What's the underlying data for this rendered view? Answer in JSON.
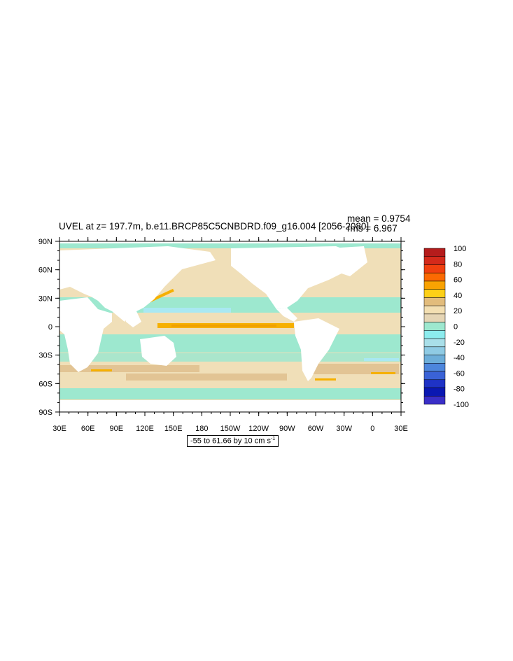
{
  "title": "UVEL at z= 197.7m, b.e11.BRCP85C5CNBDRD.f09_g16.004 [2056-2080]",
  "stats": {
    "mean": "mean = 0.9754",
    "rms": "rms = 6.967"
  },
  "map": {
    "projection": "cylindrical equidistant",
    "lon_range": [
      30,
      390
    ],
    "lat_range": [
      -90,
      90
    ],
    "lat_ticks": [
      "90N",
      "60N",
      "30N",
      "0",
      "30S",
      "60S",
      "90S"
    ],
    "lon_ticks": [
      "30E",
      "60E",
      "90E",
      "120E",
      "150E",
      "180",
      "150W",
      "120W",
      "90W",
      "60W",
      "30W",
      "0",
      "30E"
    ],
    "field_colors": {
      "land": "#ffffff",
      "zero_to_20": "#f0dfb8",
      "minus20_to_0": "#9de8cf",
      "minus40_to_minus20": "#a9e8f2",
      "twenty_to_40": "#e2c494",
      "forty_to_60": "#f6b000"
    }
  },
  "colorbar": {
    "labels": [
      "100",
      "80",
      "60",
      "40",
      "20",
      "0",
      "-20",
      "-40",
      "-60",
      "-80",
      "-100"
    ],
    "colors": [
      "#b51c1c",
      "#d42a1b",
      "#f0400f",
      "#fb6a02",
      "#f9a202",
      "#fdd017",
      "#e2bc7c",
      "#f3dfb2",
      "#e5d5b5",
      "#9de8cf",
      "#8cecee",
      "#a9dfe9",
      "#8fcbe4",
      "#6daed9",
      "#4d86dc",
      "#3a62d6",
      "#1f33c6",
      "#0a18b2",
      "#3a2fc8"
    ]
  },
  "range_label": "-55 to 61.66 by 10 cm s",
  "range_unit_exp": "-1"
}
